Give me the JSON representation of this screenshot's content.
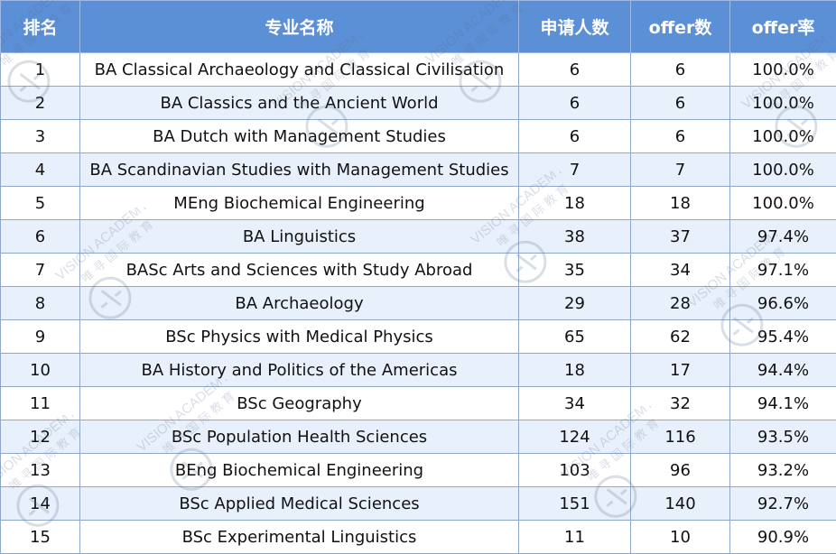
{
  "table": {
    "headers": [
      "排名",
      "专业名称",
      "申请人数",
      "offer数",
      "offer率"
    ],
    "rows": [
      {
        "rank": "1",
        "major": "BA Classical Archaeology and Classical Civilisation",
        "applicants": "6",
        "offers": "6",
        "rate": "100.0%"
      },
      {
        "rank": "2",
        "major": "BA Classics and the Ancient World",
        "applicants": "6",
        "offers": "6",
        "rate": "100.0%"
      },
      {
        "rank": "3",
        "major": "BA Dutch with Management Studies",
        "applicants": "6",
        "offers": "6",
        "rate": "100.0%"
      },
      {
        "rank": "4",
        "major": "BA Scandinavian Studies with Management Studies",
        "applicants": "7",
        "offers": "7",
        "rate": "100.0%"
      },
      {
        "rank": "5",
        "major": "MEng Biochemical Engineering",
        "applicants": "18",
        "offers": "18",
        "rate": "100.0%"
      },
      {
        "rank": "6",
        "major": "BA Linguistics",
        "applicants": "38",
        "offers": "37",
        "rate": "97.4%"
      },
      {
        "rank": "7",
        "major": "BASc Arts and Sciences with Study Abroad",
        "applicants": "35",
        "offers": "34",
        "rate": "97.1%"
      },
      {
        "rank": "8",
        "major": "BA Archaeology",
        "applicants": "29",
        "offers": "28",
        "rate": "96.6%"
      },
      {
        "rank": "9",
        "major": "BSc Physics with Medical Physics",
        "applicants": "65",
        "offers": "62",
        "rate": "95.4%"
      },
      {
        "rank": "10",
        "major": "BA History and Politics of the Americas",
        "applicants": "18",
        "offers": "17",
        "rate": "94.4%"
      },
      {
        "rank": "11",
        "major": "BSc Geography",
        "applicants": "34",
        "offers": "32",
        "rate": "94.1%"
      },
      {
        "rank": "12",
        "major": "BSc Population Health Sciences",
        "applicants": "124",
        "offers": "116",
        "rate": "93.5%"
      },
      {
        "rank": "13",
        "major": "BEng Biochemical Engineering",
        "applicants": "103",
        "offers": "96",
        "rate": "93.2%"
      },
      {
        "rank": "14",
        "major": "BSc Applied Medical Sciences",
        "applicants": "151",
        "offers": "140",
        "rate": "92.7%"
      },
      {
        "rank": "15",
        "major": "BSc Experimental Linguistics",
        "applicants": "11",
        "offers": "10",
        "rate": "90.9%"
      }
    ]
  },
  "watermark": {
    "text_en": "VISION ACADEMY",
    "text_cn": "唯 寻 国 际 教 育",
    "icon": "vision-academy-logo-icon",
    "color": "#5a6e8c"
  },
  "colors": {
    "header_bg": "#5b8fd6",
    "stripe_bg": "#e8f0fb"
  }
}
